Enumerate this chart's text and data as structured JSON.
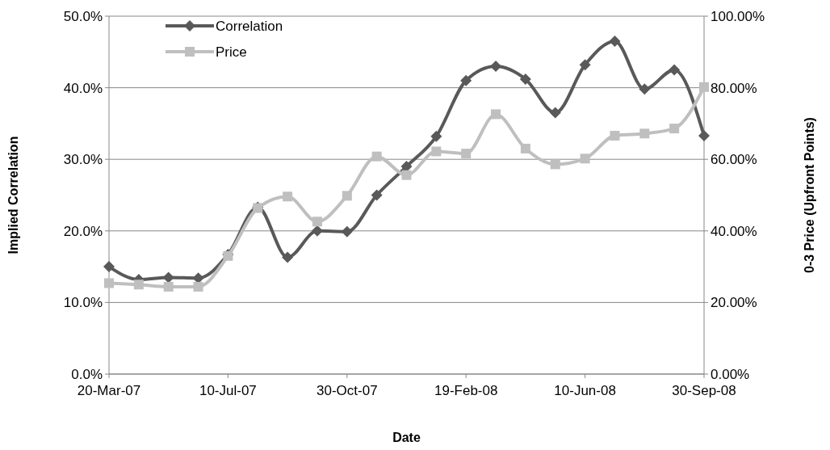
{
  "chart_data": {
    "type": "line",
    "xlabel": "Date",
    "ylabel": "Implied Correlation",
    "y2label": "0-3 Price (Upfront Points)",
    "x": [
      "2007-03-20",
      "2007-04-17",
      "2007-05-15",
      "2007-06-12",
      "2007-07-10",
      "2007-08-07",
      "2007-09-04",
      "2007-10-02",
      "2007-10-30",
      "2007-11-27",
      "2007-12-25",
      "2008-01-22",
      "2008-02-19",
      "2008-03-18",
      "2008-04-15",
      "2008-05-13",
      "2008-06-10",
      "2008-07-08",
      "2008-08-05",
      "2008-09-02",
      "2008-09-30"
    ],
    "series": [
      {
        "name": "Correlation",
        "color": "#595959",
        "marker": "diamond",
        "values": [
          15.0,
          13.2,
          13.5,
          13.4,
          16.7,
          23.3,
          16.3,
          20.0,
          19.9,
          25.0,
          29.0,
          33.2,
          41.0,
          43.0,
          41.2,
          36.5,
          43.2,
          46.5,
          39.8,
          42.5,
          33.3
        ]
      },
      {
        "name": "Price",
        "color": "#bfbfbf",
        "marker": "square",
        "axis": "y2",
        "values": [
          25.4,
          25.0,
          24.4,
          24.4,
          33.0,
          46.4,
          49.6,
          42.6,
          49.8,
          60.8,
          55.6,
          62.2,
          61.6,
          72.6,
          63.0,
          58.6,
          60.2,
          66.6,
          67.2,
          68.6,
          80.2
        ]
      }
    ],
    "xlim": [
      "2007-03-20",
      "2008-09-30"
    ],
    "xticks": [
      {
        "value": "2007-03-20",
        "label": "20-Mar-07"
      },
      {
        "value": "2007-07-10",
        "label": "10-Jul-07"
      },
      {
        "value": "2007-10-30",
        "label": "30-Oct-07"
      },
      {
        "value": "2008-02-19",
        "label": "19-Feb-08"
      },
      {
        "value": "2008-06-10",
        "label": "10-Jun-08"
      },
      {
        "value": "2008-09-30",
        "label": "30-Sep-08"
      }
    ],
    "ylim": [
      0,
      50
    ],
    "yticks": [
      {
        "value": 0,
        "label": "0.0%"
      },
      {
        "value": 10,
        "label": "10.0%"
      },
      {
        "value": 20,
        "label": "20.0%"
      },
      {
        "value": 30,
        "label": "30.0%"
      },
      {
        "value": 40,
        "label": "40.0%"
      },
      {
        "value": 50,
        "label": "50.0%"
      }
    ],
    "y2lim": [
      0,
      100
    ],
    "y2ticks": [
      {
        "value": 0,
        "label": "0.00%"
      },
      {
        "value": 20,
        "label": "20.00%"
      },
      {
        "value": 40,
        "label": "40.00%"
      },
      {
        "value": 60,
        "label": "60.00%"
      },
      {
        "value": 80,
        "label": "80.00%"
      },
      {
        "value": 100,
        "label": "100.00%"
      }
    ],
    "grid": "y",
    "legend": "top left",
    "line_style": "solid"
  }
}
